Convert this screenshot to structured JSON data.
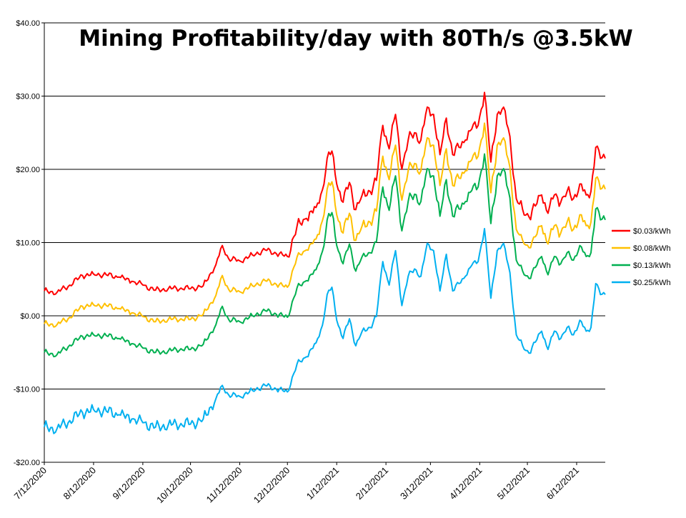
{
  "chart_data": {
    "type": "line",
    "title": "Mining Profitability/day with 80Th/s @3.5kW",
    "xlabel": "",
    "ylabel": "",
    "ylim": [
      -20,
      40
    ],
    "yticks": [
      -20,
      -10,
      0,
      10,
      20,
      30,
      40
    ],
    "ytick_labels": [
      "-$20.00",
      "-$10.00",
      "$0.00",
      "$10.00",
      "$20.00",
      "$30.00",
      "$40.00"
    ],
    "xlim": [
      "2020-07-12",
      "2021-06-30"
    ],
    "xtick_labels": [
      "7/12/2020",
      "8/12/2020",
      "9/12/2020",
      "10/12/2020",
      "11/12/2020",
      "12/12/2020",
      "1/12/2021",
      "2/12/2021",
      "3/12/2021",
      "4/12/2021",
      "5/12/2021",
      "6/12/2021"
    ],
    "xtick_dates": [
      "2020-07-12",
      "2020-08-12",
      "2020-09-12",
      "2020-10-12",
      "2020-11-12",
      "2020-12-12",
      "2021-01-12",
      "2021-02-12",
      "2021-03-12",
      "2021-04-12",
      "2021-05-12",
      "2021-06-12"
    ],
    "grid": "horizontal",
    "legend_position": "right",
    "x": [
      "2020-07-12",
      "2020-07-20",
      "2020-07-28",
      "2020-08-05",
      "2020-08-12",
      "2020-08-20",
      "2020-08-28",
      "2020-09-05",
      "2020-09-12",
      "2020-09-20",
      "2020-09-28",
      "2020-10-06",
      "2020-10-12",
      "2020-10-20",
      "2020-10-28",
      "2020-11-01",
      "2020-11-05",
      "2020-11-12",
      "2020-11-20",
      "2020-11-28",
      "2020-12-05",
      "2020-12-12",
      "2020-12-18",
      "2020-12-24",
      "2020-12-30",
      "2021-01-03",
      "2021-01-06",
      "2021-01-09",
      "2021-01-12",
      "2021-01-16",
      "2021-01-20",
      "2021-01-24",
      "2021-01-28",
      "2021-02-02",
      "2021-02-06",
      "2021-02-10",
      "2021-02-14",
      "2021-02-18",
      "2021-02-22",
      "2021-02-26",
      "2021-03-02",
      "2021-03-06",
      "2021-03-10",
      "2021-03-14",
      "2021-03-18",
      "2021-03-22",
      "2021-03-26",
      "2021-03-30",
      "2021-04-03",
      "2021-04-07",
      "2021-04-11",
      "2021-04-15",
      "2021-04-19",
      "2021-04-23",
      "2021-04-27",
      "2021-05-01",
      "2021-05-05",
      "2021-05-09",
      "2021-05-13",
      "2021-05-17",
      "2021-05-21",
      "2021-05-25",
      "2021-05-29",
      "2021-06-02",
      "2021-06-06",
      "2021-06-10",
      "2021-06-14",
      "2021-06-18",
      "2021-06-21",
      "2021-06-24",
      "2021-06-27",
      "2021-06-30"
    ],
    "series": [
      {
        "name": "$0.03/kWh",
        "color": "#ff0000",
        "values": [
          3.4,
          3.2,
          4.2,
          5.5,
          5.7,
          5.6,
          5.3,
          4.7,
          4.2,
          3.5,
          3.7,
          3.8,
          3.7,
          4.1,
          7.0,
          9.6,
          7.8,
          7.5,
          8.3,
          9.0,
          8.5,
          8.1,
          12.2,
          13.3,
          14.8,
          17.2,
          21.5,
          22.5,
          18.0,
          15.5,
          18.2,
          14.5,
          16.5,
          17.0,
          18.5,
          26.0,
          22.8,
          27.5,
          20.0,
          24.0,
          25.0,
          24.0,
          28.5,
          27.5,
          22.0,
          27.0,
          22.0,
          23.0,
          24.0,
          25.5,
          26.0,
          30.5,
          21.0,
          27.5,
          28.5,
          24.5,
          16.0,
          14.5,
          13.5,
          15.0,
          16.5,
          14.0,
          16.5,
          15.5,
          17.0,
          16.0,
          18.0,
          16.5,
          17.0,
          23.0,
          21.5,
          21.5
        ]
      },
      {
        "name": "$0.08/kWh",
        "color": "#ffc000",
        "values": [
          -1.1,
          -1.2,
          -0.2,
          1.3,
          1.5,
          1.4,
          1.0,
          0.4,
          -0.1,
          -0.8,
          -0.5,
          -0.4,
          -0.5,
          0.2,
          2.8,
          5.5,
          3.6,
          3.3,
          4.1,
          4.8,
          4.3,
          3.9,
          8.0,
          9.0,
          10.5,
          13.0,
          17.3,
          18.3,
          13.8,
          11.3,
          14.0,
          10.3,
          12.3,
          12.8,
          14.3,
          21.8,
          18.6,
          23.3,
          15.8,
          19.8,
          20.8,
          19.8,
          24.3,
          23.3,
          17.8,
          22.8,
          17.8,
          18.8,
          19.8,
          21.3,
          21.8,
          26.3,
          16.8,
          23.3,
          24.3,
          20.3,
          11.8,
          10.3,
          9.3,
          10.8,
          12.3,
          9.8,
          12.3,
          11.3,
          12.8,
          11.8,
          13.8,
          12.3,
          12.8,
          18.8,
          17.3,
          17.3
        ]
      },
      {
        "name": "$0.13/kWh",
        "color": "#00b050",
        "values": [
          -5.0,
          -5.3,
          -4.0,
          -2.8,
          -2.6,
          -2.7,
          -3.1,
          -3.8,
          -4.4,
          -5.0,
          -4.8,
          -4.5,
          -4.6,
          -3.9,
          -1.2,
          1.3,
          -0.5,
          -0.8,
          0.0,
          0.7,
          0.2,
          -0.2,
          3.8,
          4.8,
          6.3,
          8.8,
          13.1,
          14.1,
          9.6,
          7.1,
          9.8,
          6.1,
          8.1,
          8.6,
          10.1,
          17.6,
          14.4,
          19.1,
          11.6,
          15.6,
          16.6,
          15.6,
          20.1,
          19.1,
          13.6,
          18.6,
          13.6,
          14.6,
          15.6,
          17.1,
          17.6,
          22.1,
          12.6,
          19.1,
          20.1,
          16.1,
          7.6,
          6.1,
          5.1,
          6.6,
          8.1,
          5.6,
          8.1,
          7.1,
          8.6,
          7.6,
          9.6,
          8.1,
          8.6,
          14.6,
          13.1,
          13.1
        ]
      },
      {
        "name": "$0.25/kWh",
        "color": "#00b0f0",
        "values": [
          -15.2,
          -15.4,
          -14.3,
          -13.2,
          -12.8,
          -13.0,
          -13.5,
          -14.1,
          -14.6,
          -15.2,
          -14.9,
          -14.7,
          -14.8,
          -14.1,
          -11.3,
          -9.5,
          -10.8,
          -11.0,
          -10.2,
          -9.5,
          -10.0,
          -10.4,
          -6.6,
          -5.6,
          -3.7,
          -1.3,
          2.9,
          3.9,
          -0.6,
          -3.1,
          -0.4,
          -4.1,
          -2.1,
          -1.6,
          -0.1,
          7.4,
          4.2,
          8.9,
          1.4,
          5.4,
          6.4,
          5.4,
          9.9,
          8.9,
          3.4,
          8.4,
          3.4,
          4.4,
          5.4,
          6.9,
          7.4,
          11.9,
          2.4,
          8.9,
          9.9,
          5.9,
          -2.6,
          -4.1,
          -5.1,
          -3.6,
          -2.1,
          -4.6,
          -2.1,
          -3.1,
          -1.6,
          -2.6,
          -0.6,
          -2.1,
          -1.6,
          4.4,
          2.9,
          2.9
        ]
      }
    ]
  }
}
